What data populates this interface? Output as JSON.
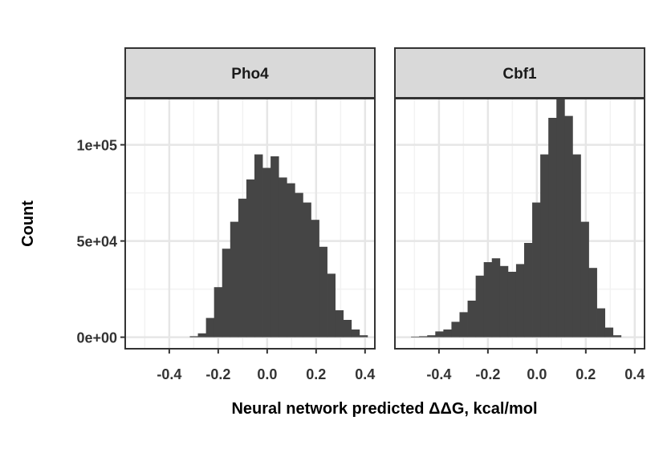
{
  "chart_data": {
    "type": "bar",
    "subtype": "faceted-histogram",
    "xlabel": "Neural network predicted ΔΔG, kcal/mol",
    "ylabel": "Count",
    "xlim": [
      -0.58,
      0.44
    ],
    "ylim": [
      -6000,
      124000
    ],
    "x_ticks": [
      -0.4,
      -0.2,
      0.0,
      0.2,
      0.4
    ],
    "x_tick_labels": [
      "-0.4",
      "-0.2",
      "0.0",
      "0.2",
      "0.4"
    ],
    "y_ticks": [
      0,
      50000,
      100000
    ],
    "y_tick_labels": [
      "0e+00",
      "5e+04",
      "1e+05"
    ],
    "grid": true,
    "bar_color": "#454545",
    "strip_fill": "#d9d9d9",
    "bin_width": 0.033,
    "facets": [
      {
        "name": "Pho4",
        "bin_left_edges": [
          -0.58,
          -0.547,
          -0.514,
          -0.481,
          -0.448,
          -0.415,
          -0.382,
          -0.349,
          -0.316,
          -0.283,
          -0.25,
          -0.217,
          -0.184,
          -0.151,
          -0.118,
          -0.085,
          -0.052,
          -0.019,
          0.014,
          0.047,
          0.08,
          0.113,
          0.146,
          0.179,
          0.212,
          0.245,
          0.278,
          0.311,
          0.344,
          0.377,
          0.41
        ],
        "counts": [
          0,
          0,
          0,
          0,
          0,
          0,
          0,
          0,
          500,
          2000,
          10000,
          26000,
          46000,
          60000,
          72000,
          82000,
          95000,
          88000,
          94000,
          83000,
          80000,
          75000,
          70000,
          61000,
          47000,
          33000,
          14000,
          9000,
          4000,
          1000,
          0
        ]
      },
      {
        "name": "Cbf1",
        "bin_left_edges": [
          -0.58,
          -0.547,
          -0.514,
          -0.481,
          -0.448,
          -0.415,
          -0.382,
          -0.349,
          -0.316,
          -0.283,
          -0.25,
          -0.217,
          -0.184,
          -0.151,
          -0.118,
          -0.085,
          -0.052,
          -0.019,
          0.014,
          0.047,
          0.08,
          0.113,
          0.146,
          0.179,
          0.212,
          0.245,
          0.278,
          0.311,
          0.344,
          0.377,
          0.41
        ],
        "counts": [
          0,
          0,
          300,
          500,
          1000,
          3000,
          4000,
          8000,
          13000,
          19000,
          32000,
          39000,
          41000,
          37000,
          34000,
          38000,
          49000,
          70000,
          95000,
          114000,
          126000,
          115000,
          95000,
          60000,
          36000,
          15000,
          5000,
          1000,
          0,
          0,
          0
        ]
      }
    ]
  }
}
